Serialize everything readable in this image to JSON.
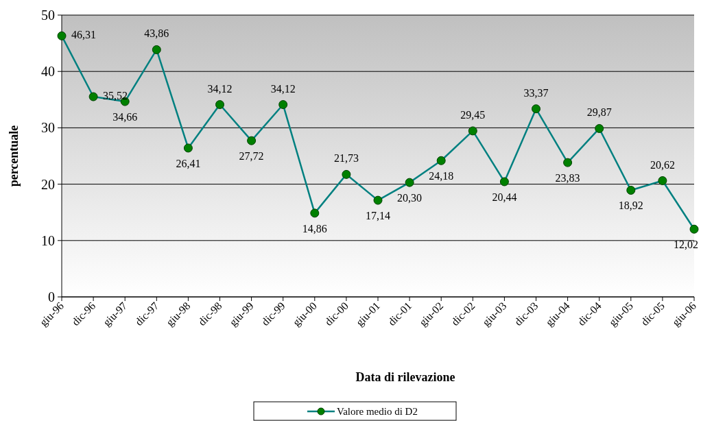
{
  "chart_data": {
    "type": "line",
    "xlabel": "Data di rilevazione",
    "ylabel": "percentuale",
    "categories": [
      "giu-96",
      "dic-96",
      "giu-97",
      "dic-97",
      "giu-98",
      "dic-98",
      "giu-99",
      "dic-99",
      "giu-00",
      "dic-00",
      "giu-01",
      "dic-01",
      "giu-02",
      "dic-02",
      "giu-03",
      "dic-03",
      "giu-04",
      "dic-04",
      "giu-05",
      "dic-05",
      "giu-06"
    ],
    "series": [
      {
        "name": "Valore medio di D2",
        "color": "#008080",
        "values": [
          46.31,
          35.52,
          34.66,
          43.86,
          26.41,
          34.12,
          27.72,
          34.12,
          14.86,
          21.73,
          17.14,
          20.3,
          24.18,
          29.45,
          20.44,
          33.37,
          23.83,
          29.87,
          18.92,
          20.62,
          12.02
        ],
        "value_labels": [
          "46,31",
          "35,52",
          "34,66",
          "43,86",
          "26,41",
          "34,12",
          "27,72",
          "34,12",
          "14,86",
          "21,73",
          "17,14",
          "20,30",
          "24,18",
          "29,45",
          "20,44",
          "33,37",
          "23,83",
          "29,87",
          "18,92",
          "20,62",
          "12,02"
        ]
      }
    ],
    "ylim": [
      0,
      50
    ],
    "yticks": [
      0,
      10,
      20,
      30,
      40,
      50
    ],
    "grid": "y",
    "legend": "bottom",
    "marker": "circle",
    "line_style": "solid"
  }
}
